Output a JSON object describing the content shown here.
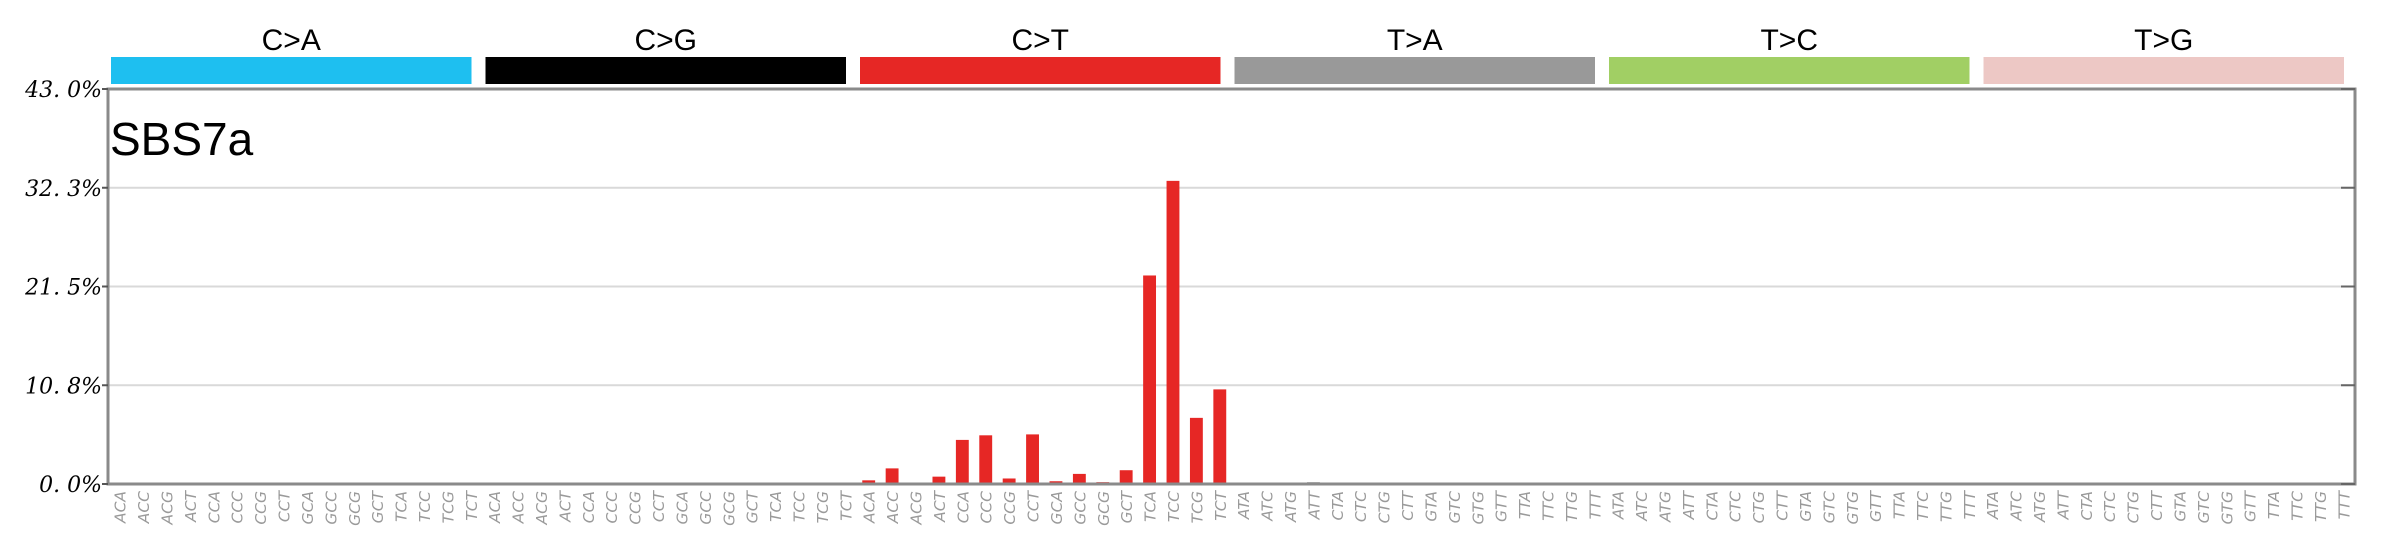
{
  "chart_data": {
    "type": "bar",
    "title": "SBS7a",
    "xlabel": "",
    "ylabel": "",
    "ylim": [
      0,
      43.0
    ],
    "y_ticks": [
      "0. 0%",
      "10. 8%",
      "21. 5%",
      "32. 3%",
      "43. 0%"
    ],
    "grid": true,
    "mutation_groups": [
      {
        "label": "C>A",
        "color": "#1ebff0"
      },
      {
        "label": "C>G",
        "color": "#000000"
      },
      {
        "label": "C>T",
        "color": "#e62725"
      },
      {
        "label": "T>A",
        "color": "#999999"
      },
      {
        "label": "T>C",
        "color": "#a1cf64"
      },
      {
        "label": "T>G",
        "color": "#edc8c5"
      }
    ],
    "group_categories": [
      [
        "ACA",
        "ACC",
        "ACG",
        "ACT",
        "CCA",
        "CCC",
        "CCG",
        "CCT",
        "GCA",
        "GCC",
        "GCG",
        "GCT",
        "TCA",
        "TCC",
        "TCG",
        "TCT"
      ],
      [
        "ACA",
        "ACC",
        "ACG",
        "ACT",
        "CCA",
        "CCC",
        "CCG",
        "CCT",
        "GCA",
        "GCC",
        "GCG",
        "GCT",
        "TCA",
        "TCC",
        "TCG",
        "TCT"
      ],
      [
        "ACA",
        "ACC",
        "ACG",
        "ACT",
        "CCA",
        "CCC",
        "CCG",
        "CCT",
        "GCA",
        "GCC",
        "GCG",
        "GCT",
        "TCA",
        "TCC",
        "TCG",
        "TCT"
      ],
      [
        "ATA",
        "ATC",
        "ATG",
        "ATT",
        "CTA",
        "CTC",
        "CTG",
        "CTT",
        "GTA",
        "GTC",
        "GTG",
        "GTT",
        "TTA",
        "TTC",
        "TTG",
        "TTT"
      ],
      [
        "ATA",
        "ATC",
        "ATG",
        "ATT",
        "CTA",
        "CTC",
        "CTG",
        "CTT",
        "GTA",
        "GTC",
        "GTG",
        "GTT",
        "TTA",
        "TTC",
        "TTG",
        "TTT"
      ],
      [
        "ATA",
        "ATC",
        "ATG",
        "ATT",
        "CTA",
        "CTC",
        "CTG",
        "CTT",
        "GTA",
        "GTC",
        "GTG",
        "GTT",
        "TTA",
        "TTC",
        "TTG",
        "TTT"
      ]
    ],
    "values": [
      [
        0.1,
        0.1,
        0.1,
        0.1,
        0.1,
        0.1,
        0.1,
        0.1,
        0.1,
        0.1,
        0.1,
        0.1,
        0.1,
        0.1,
        0.1,
        0.1
      ],
      [
        0.1,
        0.1,
        0.1,
        0.1,
        0.1,
        0.1,
        0.1,
        0.1,
        0.1,
        0.1,
        0.1,
        0.1,
        0.1,
        0.1,
        0.1,
        0.1
      ],
      [
        0.4,
        1.7,
        0.1,
        0.8,
        4.8,
        5.3,
        0.6,
        5.4,
        0.3,
        1.1,
        0.2,
        1.5,
        22.7,
        33.0,
        7.2,
        10.3
      ],
      [
        0.1,
        0.1,
        0.1,
        0.2,
        0.1,
        0.1,
        0.1,
        0.1,
        0.1,
        0.1,
        0.1,
        0.1,
        0.1,
        0.1,
        0.1,
        0.1
      ],
      [
        0.1,
        0.1,
        0.1,
        0.1,
        0.1,
        0.1,
        0.1,
        0.1,
        0.1,
        0.1,
        0.1,
        0.1,
        0.1,
        0.1,
        0.1,
        0.1
      ],
      [
        0.1,
        0.1,
        0.1,
        0.1,
        0.1,
        0.1,
        0.1,
        0.1,
        0.1,
        0.1,
        0.1,
        0.1,
        0.1,
        0.1,
        0.1,
        0.1
      ]
    ]
  }
}
